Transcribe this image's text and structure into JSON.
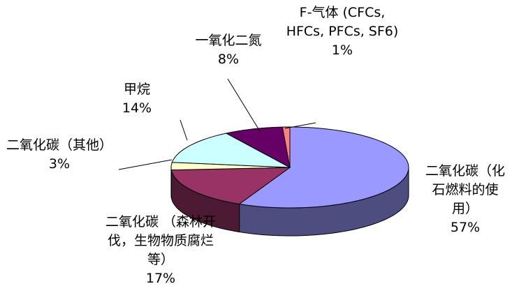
{
  "chart_data": {
    "type": "pie3d",
    "categories": [
      "二氧化碳（化石燃料的使用）",
      "二氧化碳 （森林开伐，生物物质腐烂等）",
      "二氧化碳（其他）",
      "甲烷",
      "一氧化二氮",
      "F-气体 (CFCs, HFCs, PFCs, SF6)"
    ],
    "values": [
      57,
      17,
      3,
      14,
      8,
      1
    ],
    "value_labels": [
      "57%",
      "17%",
      "3%",
      "14%",
      "8%",
      "1%"
    ],
    "colors": [
      "#9999ff",
      "#993366",
      "#ffffcc",
      "#ccffff",
      "#660066",
      "#ff8080"
    ]
  }
}
